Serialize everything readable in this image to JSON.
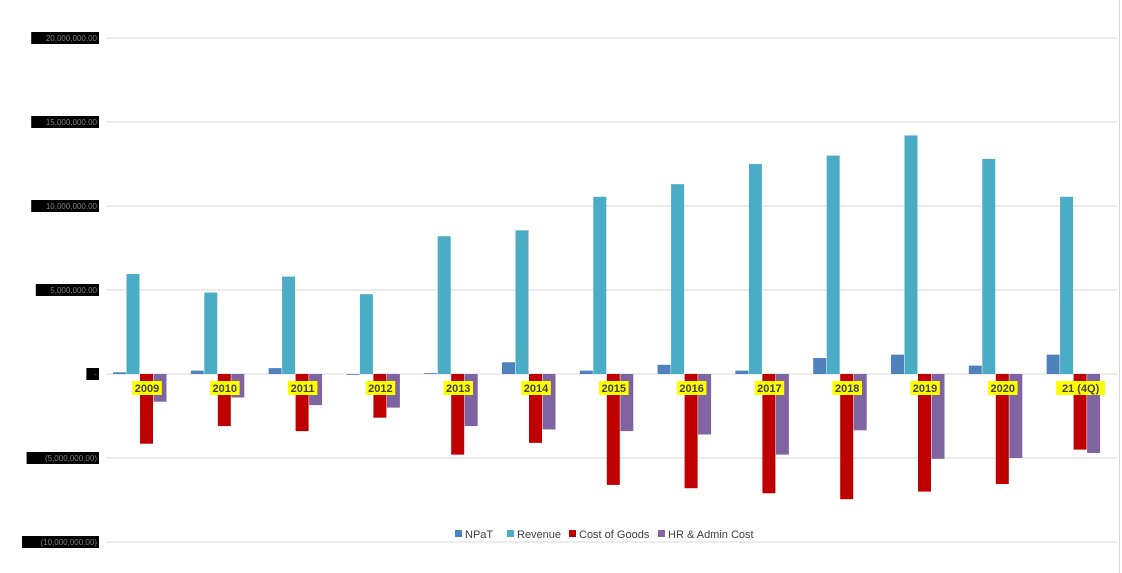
{
  "chart_data": {
    "type": "bar",
    "categories": [
      "2009",
      "2010",
      "2011",
      "2012",
      "2013",
      "2014",
      "2015",
      "2016",
      "2017",
      "2018",
      "2019",
      "2020",
      "21 (4Q)"
    ],
    "series": [
      {
        "name": "NPaT",
        "color": "#4f81bd",
        "values": [
          100000,
          200000,
          350000,
          -50000,
          50000,
          700000,
          200000,
          550000,
          200000,
          950000,
          1150000,
          500000,
          1150000
        ]
      },
      {
        "name": "Revenue",
        "color": "#4bacc6",
        "values": [
          5950000,
          4850000,
          5800000,
          4750000,
          8200000,
          8550000,
          10550000,
          11300000,
          12500000,
          13000000,
          14200000,
          12800000,
          10550000
        ]
      },
      {
        "name": "Cost of Goods",
        "color": "#c00000",
        "values": [
          -4150000,
          -3100000,
          -3400000,
          -2600000,
          -4800000,
          -4100000,
          -6600000,
          -6800000,
          -7100000,
          -7450000,
          -7000000,
          -6550000,
          -4500000
        ]
      },
      {
        "name": "HR & Admin Cost",
        "color": "#8064a2",
        "values": [
          -1650000,
          -1400000,
          -1850000,
          -2000000,
          -3100000,
          -3300000,
          -3400000,
          -3600000,
          -4800000,
          -3350000,
          -5050000,
          -5000000,
          -4700000
        ]
      }
    ],
    "ylim": [
      -10000000,
      20000000
    ],
    "yticks": [
      20000000,
      15000000,
      10000000,
      5000000,
      0,
      -5000000,
      -10000000
    ],
    "ytick_labels": [
      "20,000,000.00",
      "15,000,000.00",
      "10,000,000.00",
      "5,000,000.00",
      "-",
      "(5,000,000.00)",
      "(10,000,000.00)"
    ],
    "grid": true,
    "legend_position": "bottom"
  }
}
